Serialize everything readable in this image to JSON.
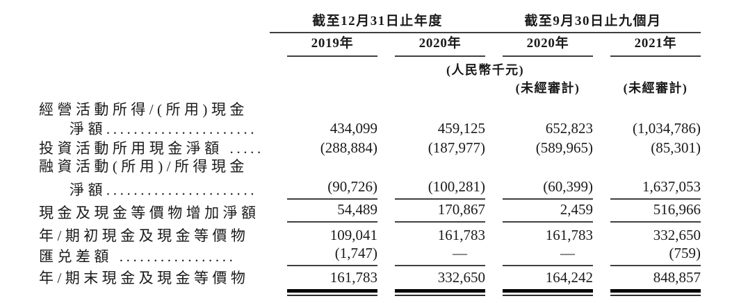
{
  "page": {
    "background": "#ffffff",
    "text_color": "#1a1a1a",
    "rule_color": "#3f3f3f",
    "heavy_rule_color": "#000000"
  },
  "table": {
    "col_groups": [
      {
        "label": "截至12月31日止年度",
        "years": [
          "2019年",
          "2020年"
        ]
      },
      {
        "label": "截至9月30日止九個月",
        "years": [
          "2020年",
          "2021年"
        ]
      }
    ],
    "unit_note": "(人民幣千元)",
    "unaudited_notes": [
      "(未經審計)",
      "(未經審計)"
    ],
    "rows": [
      {
        "label": "經營活動所得/(所用)現金",
        "values": [
          "",
          "",
          "",
          ""
        ]
      },
      {
        "label": "淨額",
        "leader_dots": "......................",
        "values": [
          "434,099",
          "459,125",
          "652,823",
          "(1,034,786)"
        ]
      },
      {
        "label": "投資活動所用現金淨額",
        "leader_dots": " .....",
        "values": [
          "(288,884)",
          "(187,977)",
          "(589,965)",
          "(85,301)"
        ]
      },
      {
        "label": "融資活動(所用)/所得現金",
        "values": [
          "",
          "",
          "",
          ""
        ]
      },
      {
        "label": "淨額",
        "leader_dots": "......................",
        "values": [
          "(90,726)",
          "(100,281)",
          "(60,399)",
          "1,637,053"
        ]
      },
      {
        "label": "現金及現金等價物增加淨額",
        "values": [
          "54,489",
          "170,867",
          "2,459",
          "516,966"
        ]
      },
      {
        "label": "年/期初現金及現金等價物",
        "values": [
          "109,041",
          "161,783",
          "161,783",
          "332,650"
        ]
      },
      {
        "label": "匯兑差額",
        "leader_dots": " .................",
        "values": [
          "(1,747)",
          "—",
          "—",
          "(759)"
        ]
      },
      {
        "label": "年/期末現金及現金等價物",
        "values": [
          "161,783",
          "332,650",
          "164,242",
          "848,857"
        ]
      }
    ]
  }
}
